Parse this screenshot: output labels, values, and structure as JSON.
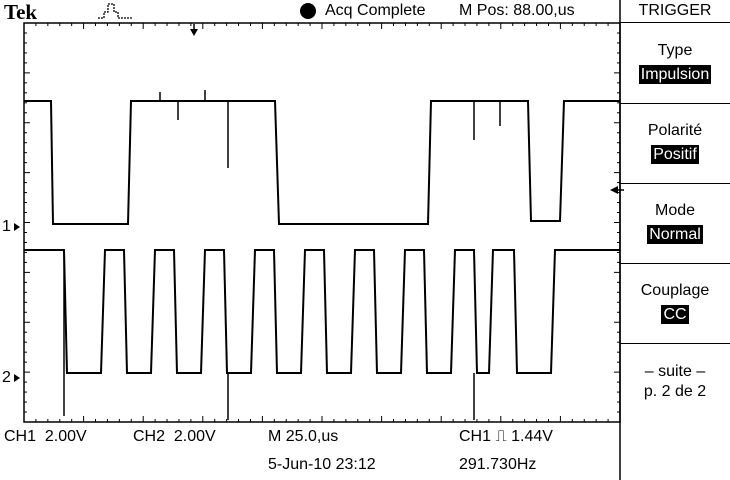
{
  "header": {
    "brand": "Tek",
    "status_text": "Acq Complete",
    "mpos_text": "M Pos: 88.00,us"
  },
  "menu": {
    "title": "TRIGGER",
    "items": [
      {
        "label": "Type",
        "value": "Impulsion"
      },
      {
        "label": "Polarité",
        "value": "Positif"
      },
      {
        "label": "Mode",
        "value": "Normal"
      },
      {
        "label": "Couplage",
        "value": "CC"
      }
    ],
    "more_line1": "– suite –",
    "more_line2": "p. 2 de 2"
  },
  "markers": {
    "ch1": "1",
    "ch2": "2"
  },
  "footer": {
    "ch1_scale": "CH1  2.00V",
    "ch2_scale": "CH2  2.00V",
    "timebase": "M 25.0,us",
    "trigger": "CH1 ⎍ 1.44V",
    "datetime": "5-Jun-10 23:12",
    "frequency": "291.730Hz"
  },
  "colors": {
    "background": "#ffffff",
    "trace": "#000000",
    "graticule": "#000000"
  }
}
